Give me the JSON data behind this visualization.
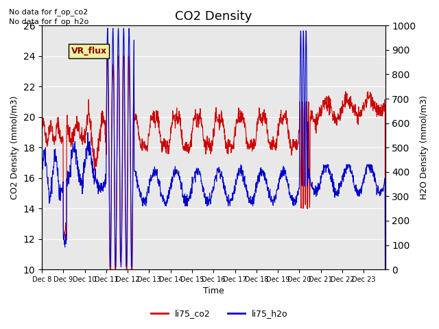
{
  "title": "CO2 Density",
  "xlabel": "Time",
  "ylabel_left": "CO2 Density (mmol/m3)",
  "ylabel_right": "H2O Density (mmol/m3)",
  "ylim_left": [
    10,
    26
  ],
  "ylim_right": [
    0,
    1000
  ],
  "yticks_left": [
    10,
    12,
    14,
    16,
    18,
    20,
    22,
    24,
    26
  ],
  "yticks_right": [
    0,
    100,
    200,
    300,
    400,
    500,
    600,
    700,
    800,
    900,
    1000
  ],
  "xtick_labels": [
    "Dec 8",
    "Dec 9",
    "Dec 10",
    "Dec 11",
    "Dec 12",
    "Dec 13",
    "Dec 14",
    "Dec 15",
    "Dec 16",
    "Dec 17",
    "Dec 18",
    "Dec 19",
    "Dec 20",
    "Dec 21",
    "Dec 22",
    "Dec 23"
  ],
  "n_ticks": 16,
  "color_co2": "#cc0000",
  "color_h2o": "#0000cc",
  "legend_label_co2": "li75_co2",
  "legend_label_h2o": "li75_h2o",
  "text_no_data_1": "No data for f_op_co2",
  "text_no_data_2": "No data for f_op_h2o",
  "vr_flux_label": "VR_flux",
  "bg_color": "#e8e8e8",
  "title_fontsize": 13
}
